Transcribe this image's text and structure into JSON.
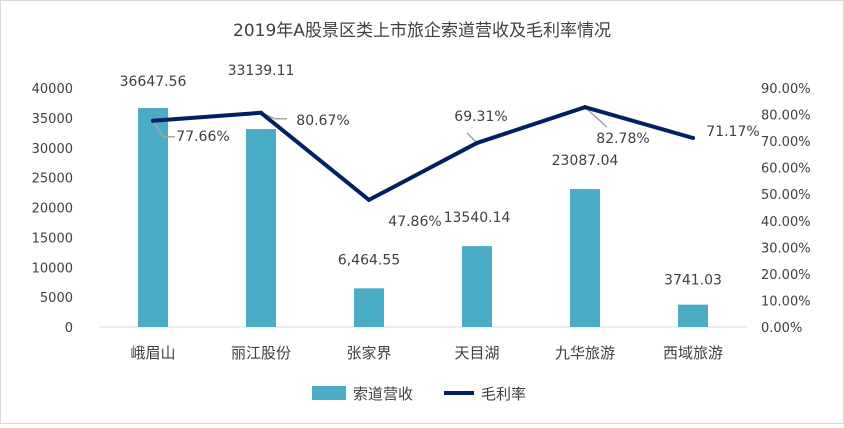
{
  "chart_data": {
    "type": "bar",
    "title": "2019年A股景区类上市旅企索道营收及毛利率情况",
    "categories": [
      "峨眉山",
      "丽江股份",
      "张家界",
      "天目湖",
      "九华旅游",
      "西域旅游"
    ],
    "series": [
      {
        "name": "索道营收",
        "type": "bar",
        "axis": "left",
        "color": "#4bacc6",
        "values": [
          36647.56,
          33139.11,
          6464.55,
          13540.14,
          23087.04,
          3741.03
        ],
        "labels": [
          "36647.56",
          "33139.11",
          "6,464.55",
          "13540.14",
          "23087.04",
          "3741.03"
        ]
      },
      {
        "name": "毛利率",
        "type": "line",
        "axis": "right",
        "color": "#002060",
        "values": [
          0.7766,
          0.8067,
          0.4786,
          0.6931,
          0.8278,
          0.7117
        ],
        "labels": [
          "77.66%",
          "80.67%",
          "47.86%",
          "69.31%",
          "82.78%",
          "71.17%"
        ]
      }
    ],
    "y_left": {
      "min": 0,
      "max": 40000,
      "ticks": [
        "0",
        "5000",
        "10000",
        "15000",
        "20000",
        "25000",
        "30000",
        "35000",
        "40000"
      ]
    },
    "y_right": {
      "min": 0,
      "max": 0.9,
      "ticks": [
        "0.00%",
        "10.00%",
        "20.00%",
        "30.00%",
        "40.00%",
        "50.00%",
        "60.00%",
        "70.00%",
        "80.00%",
        "90.00%"
      ]
    },
    "grid": false,
    "legend_position": "bottom"
  }
}
